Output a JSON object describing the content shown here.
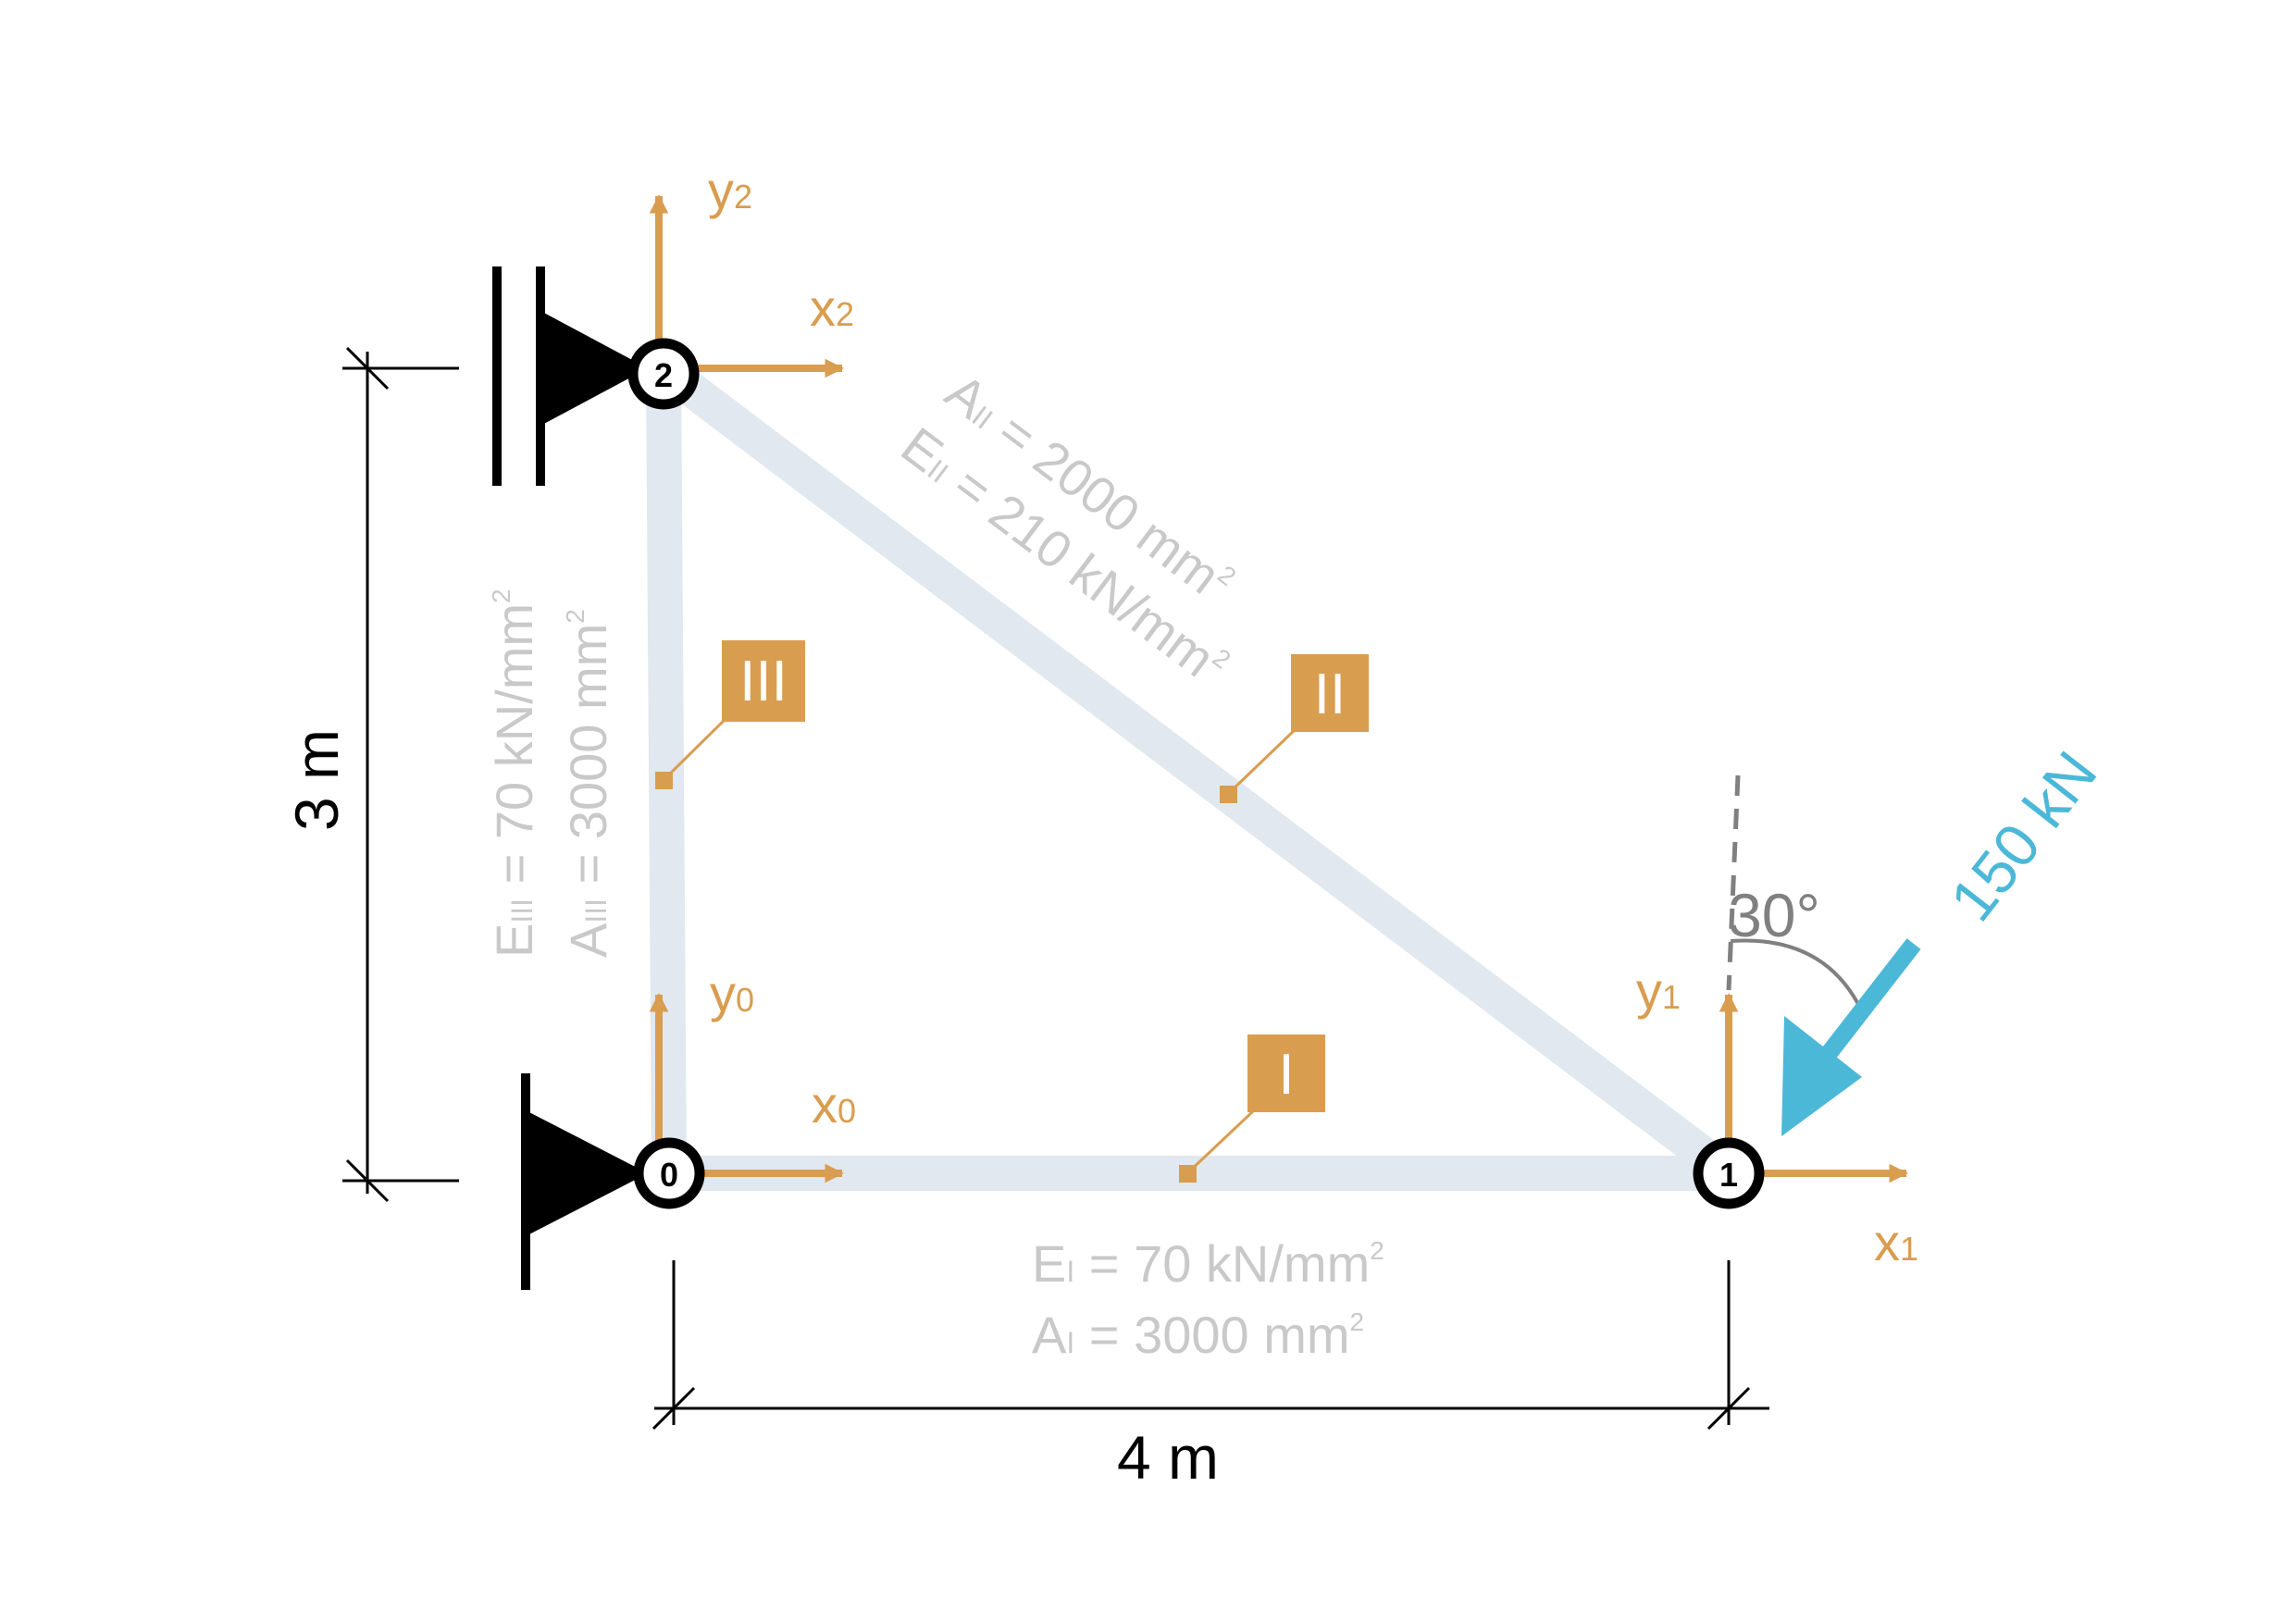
{
  "colors": {
    "member": "#e1e8ef",
    "axis": "#d99d50",
    "force": "#4bb8d8",
    "ink": "#000000",
    "props": "#c9c9c9",
    "angle": "#808080"
  },
  "nodes": [
    {
      "label": "0"
    },
    {
      "label": "1"
    },
    {
      "label": "2"
    }
  ],
  "axes": {
    "x0": {
      "main": "x",
      "sub": "0"
    },
    "y0": {
      "main": "y",
      "sub": "0"
    },
    "x1": {
      "main": "x",
      "sub": "1"
    },
    "y1": {
      "main": "y",
      "sub": "1"
    },
    "x2": {
      "main": "x",
      "sub": "2"
    },
    "y2": {
      "main": "y",
      "sub": "2"
    }
  },
  "members": [
    {
      "label": "I",
      "E_sym": "E",
      "E_sub": "I",
      "E_val": " = 70 kN/mm",
      "A_sym": "A",
      "A_sub": "I",
      "A_val": " = 3000 mm",
      "unit_sup": "2"
    },
    {
      "label": "II",
      "E_sym": "E",
      "E_sub": "II",
      "E_val": " = 210 kN/mm",
      "A_sym": "A",
      "A_sub": "II",
      "A_val": " = 2000 mm",
      "unit_sup": "2"
    },
    {
      "label": "III",
      "E_sym": "E",
      "E_sub": "III",
      "E_val": " = 70 kN/mm",
      "A_sym": "A",
      "A_sub": "III",
      "A_val": " = 3000 mm",
      "unit_sup": "2"
    }
  ],
  "dimensions": {
    "horizontal": "4 m",
    "vertical": "3 m"
  },
  "load": {
    "label": "150 kN",
    "angle_label": "30°"
  }
}
